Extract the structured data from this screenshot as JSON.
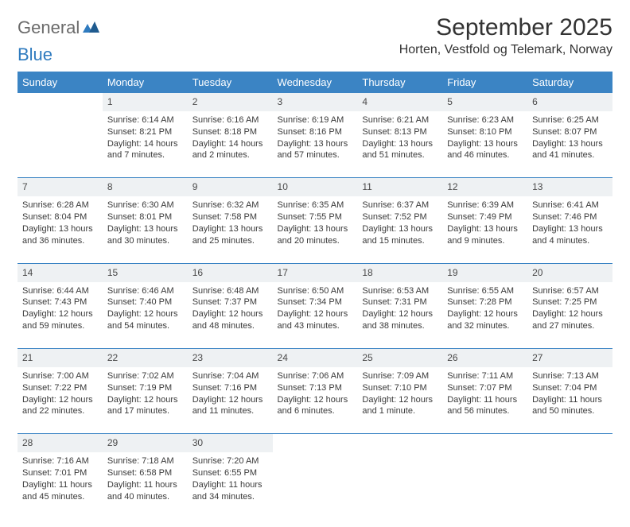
{
  "logo": {
    "text1": "General",
    "text2": "Blue"
  },
  "title": "September 2025",
  "subtitle": "Horten, Vestfold og Telemark, Norway",
  "colors": {
    "header_bg": "#3b84c4",
    "header_text": "#ffffff",
    "daynum_bg": "#eef1f3",
    "border": "#3b84c4",
    "logo_gray": "#6b6b6b",
    "logo_blue": "#2f7bbf",
    "body_text": "#3a3a3a"
  },
  "day_headers": [
    "Sunday",
    "Monday",
    "Tuesday",
    "Wednesday",
    "Thursday",
    "Friday",
    "Saturday"
  ],
  "weeks": [
    [
      {
        "day": "",
        "lines": []
      },
      {
        "day": "1",
        "lines": [
          "Sunrise: 6:14 AM",
          "Sunset: 8:21 PM",
          "Daylight: 14 hours",
          "and 7 minutes."
        ]
      },
      {
        "day": "2",
        "lines": [
          "Sunrise: 6:16 AM",
          "Sunset: 8:18 PM",
          "Daylight: 14 hours",
          "and 2 minutes."
        ]
      },
      {
        "day": "3",
        "lines": [
          "Sunrise: 6:19 AM",
          "Sunset: 8:16 PM",
          "Daylight: 13 hours",
          "and 57 minutes."
        ]
      },
      {
        "day": "4",
        "lines": [
          "Sunrise: 6:21 AM",
          "Sunset: 8:13 PM",
          "Daylight: 13 hours",
          "and 51 minutes."
        ]
      },
      {
        "day": "5",
        "lines": [
          "Sunrise: 6:23 AM",
          "Sunset: 8:10 PM",
          "Daylight: 13 hours",
          "and 46 minutes."
        ]
      },
      {
        "day": "6",
        "lines": [
          "Sunrise: 6:25 AM",
          "Sunset: 8:07 PM",
          "Daylight: 13 hours",
          "and 41 minutes."
        ]
      }
    ],
    [
      {
        "day": "7",
        "lines": [
          "Sunrise: 6:28 AM",
          "Sunset: 8:04 PM",
          "Daylight: 13 hours",
          "and 36 minutes."
        ]
      },
      {
        "day": "8",
        "lines": [
          "Sunrise: 6:30 AM",
          "Sunset: 8:01 PM",
          "Daylight: 13 hours",
          "and 30 minutes."
        ]
      },
      {
        "day": "9",
        "lines": [
          "Sunrise: 6:32 AM",
          "Sunset: 7:58 PM",
          "Daylight: 13 hours",
          "and 25 minutes."
        ]
      },
      {
        "day": "10",
        "lines": [
          "Sunrise: 6:35 AM",
          "Sunset: 7:55 PM",
          "Daylight: 13 hours",
          "and 20 minutes."
        ]
      },
      {
        "day": "11",
        "lines": [
          "Sunrise: 6:37 AM",
          "Sunset: 7:52 PM",
          "Daylight: 13 hours",
          "and 15 minutes."
        ]
      },
      {
        "day": "12",
        "lines": [
          "Sunrise: 6:39 AM",
          "Sunset: 7:49 PM",
          "Daylight: 13 hours",
          "and 9 minutes."
        ]
      },
      {
        "day": "13",
        "lines": [
          "Sunrise: 6:41 AM",
          "Sunset: 7:46 PM",
          "Daylight: 13 hours",
          "and 4 minutes."
        ]
      }
    ],
    [
      {
        "day": "14",
        "lines": [
          "Sunrise: 6:44 AM",
          "Sunset: 7:43 PM",
          "Daylight: 12 hours",
          "and 59 minutes."
        ]
      },
      {
        "day": "15",
        "lines": [
          "Sunrise: 6:46 AM",
          "Sunset: 7:40 PM",
          "Daylight: 12 hours",
          "and 54 minutes."
        ]
      },
      {
        "day": "16",
        "lines": [
          "Sunrise: 6:48 AM",
          "Sunset: 7:37 PM",
          "Daylight: 12 hours",
          "and 48 minutes."
        ]
      },
      {
        "day": "17",
        "lines": [
          "Sunrise: 6:50 AM",
          "Sunset: 7:34 PM",
          "Daylight: 12 hours",
          "and 43 minutes."
        ]
      },
      {
        "day": "18",
        "lines": [
          "Sunrise: 6:53 AM",
          "Sunset: 7:31 PM",
          "Daylight: 12 hours",
          "and 38 minutes."
        ]
      },
      {
        "day": "19",
        "lines": [
          "Sunrise: 6:55 AM",
          "Sunset: 7:28 PM",
          "Daylight: 12 hours",
          "and 32 minutes."
        ]
      },
      {
        "day": "20",
        "lines": [
          "Sunrise: 6:57 AM",
          "Sunset: 7:25 PM",
          "Daylight: 12 hours",
          "and 27 minutes."
        ]
      }
    ],
    [
      {
        "day": "21",
        "lines": [
          "Sunrise: 7:00 AM",
          "Sunset: 7:22 PM",
          "Daylight: 12 hours",
          "and 22 minutes."
        ]
      },
      {
        "day": "22",
        "lines": [
          "Sunrise: 7:02 AM",
          "Sunset: 7:19 PM",
          "Daylight: 12 hours",
          "and 17 minutes."
        ]
      },
      {
        "day": "23",
        "lines": [
          "Sunrise: 7:04 AM",
          "Sunset: 7:16 PM",
          "Daylight: 12 hours",
          "and 11 minutes."
        ]
      },
      {
        "day": "24",
        "lines": [
          "Sunrise: 7:06 AM",
          "Sunset: 7:13 PM",
          "Daylight: 12 hours",
          "and 6 minutes."
        ]
      },
      {
        "day": "25",
        "lines": [
          "Sunrise: 7:09 AM",
          "Sunset: 7:10 PM",
          "Daylight: 12 hours",
          "and 1 minute."
        ]
      },
      {
        "day": "26",
        "lines": [
          "Sunrise: 7:11 AM",
          "Sunset: 7:07 PM",
          "Daylight: 11 hours",
          "and 56 minutes."
        ]
      },
      {
        "day": "27",
        "lines": [
          "Sunrise: 7:13 AM",
          "Sunset: 7:04 PM",
          "Daylight: 11 hours",
          "and 50 minutes."
        ]
      }
    ],
    [
      {
        "day": "28",
        "lines": [
          "Sunrise: 7:16 AM",
          "Sunset: 7:01 PM",
          "Daylight: 11 hours",
          "and 45 minutes."
        ]
      },
      {
        "day": "29",
        "lines": [
          "Sunrise: 7:18 AM",
          "Sunset: 6:58 PM",
          "Daylight: 11 hours",
          "and 40 minutes."
        ]
      },
      {
        "day": "30",
        "lines": [
          "Sunrise: 7:20 AM",
          "Sunset: 6:55 PM",
          "Daylight: 11 hours",
          "and 34 minutes."
        ]
      },
      {
        "day": "",
        "lines": []
      },
      {
        "day": "",
        "lines": []
      },
      {
        "day": "",
        "lines": []
      },
      {
        "day": "",
        "lines": []
      }
    ]
  ]
}
